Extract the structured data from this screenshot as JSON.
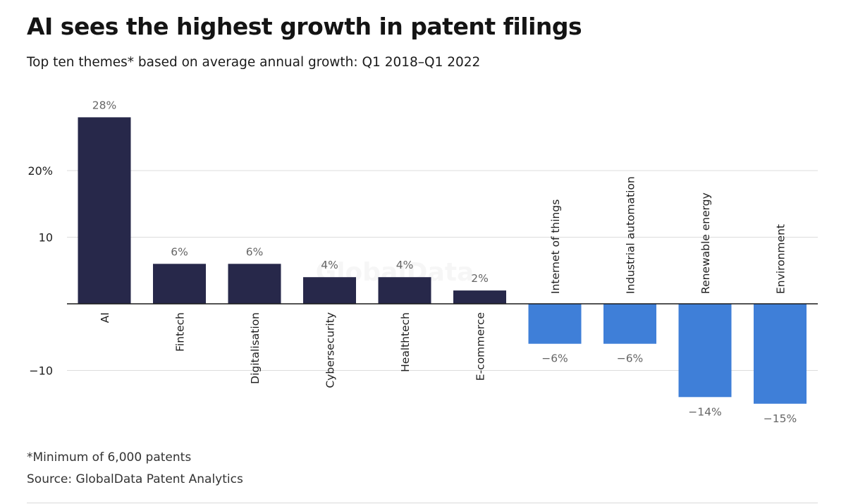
{
  "chart_data": {
    "type": "bar",
    "title": "AI sees the highest growth in patent filings",
    "subtitle": "Top ten themes* based on average annual growth: Q1 2018–Q1 2022",
    "categories": [
      "AI",
      "Fintech",
      "Digitalisation",
      "Cybersecurity",
      "Healthtech",
      "E-commerce",
      "Internet of things",
      "Industrial automation",
      "Renewable energy",
      "Environment"
    ],
    "values": [
      28,
      6,
      6,
      4,
      4,
      2,
      -6,
      -6,
      -14,
      -15
    ],
    "data_labels": [
      "28%",
      "6%",
      "6%",
      "4%",
      "4%",
      "2%",
      "−6%",
      "−6%",
      "−14%",
      "−15%"
    ],
    "yticks": [
      -10,
      10,
      20
    ],
    "ytick_labels": [
      "−10",
      "10",
      "20%"
    ],
    "ylim": [
      -17,
      30
    ],
    "grid": true,
    "colors": {
      "positive": "#27284a",
      "negative": "#3f7fd8",
      "grid": "#dcdcdc",
      "axis": "#1a1a1a"
    }
  },
  "watermark": "GlobalData",
  "footnote": "*Minimum of 6,000 patents",
  "source": "Source: GlobalData Patent Analytics"
}
